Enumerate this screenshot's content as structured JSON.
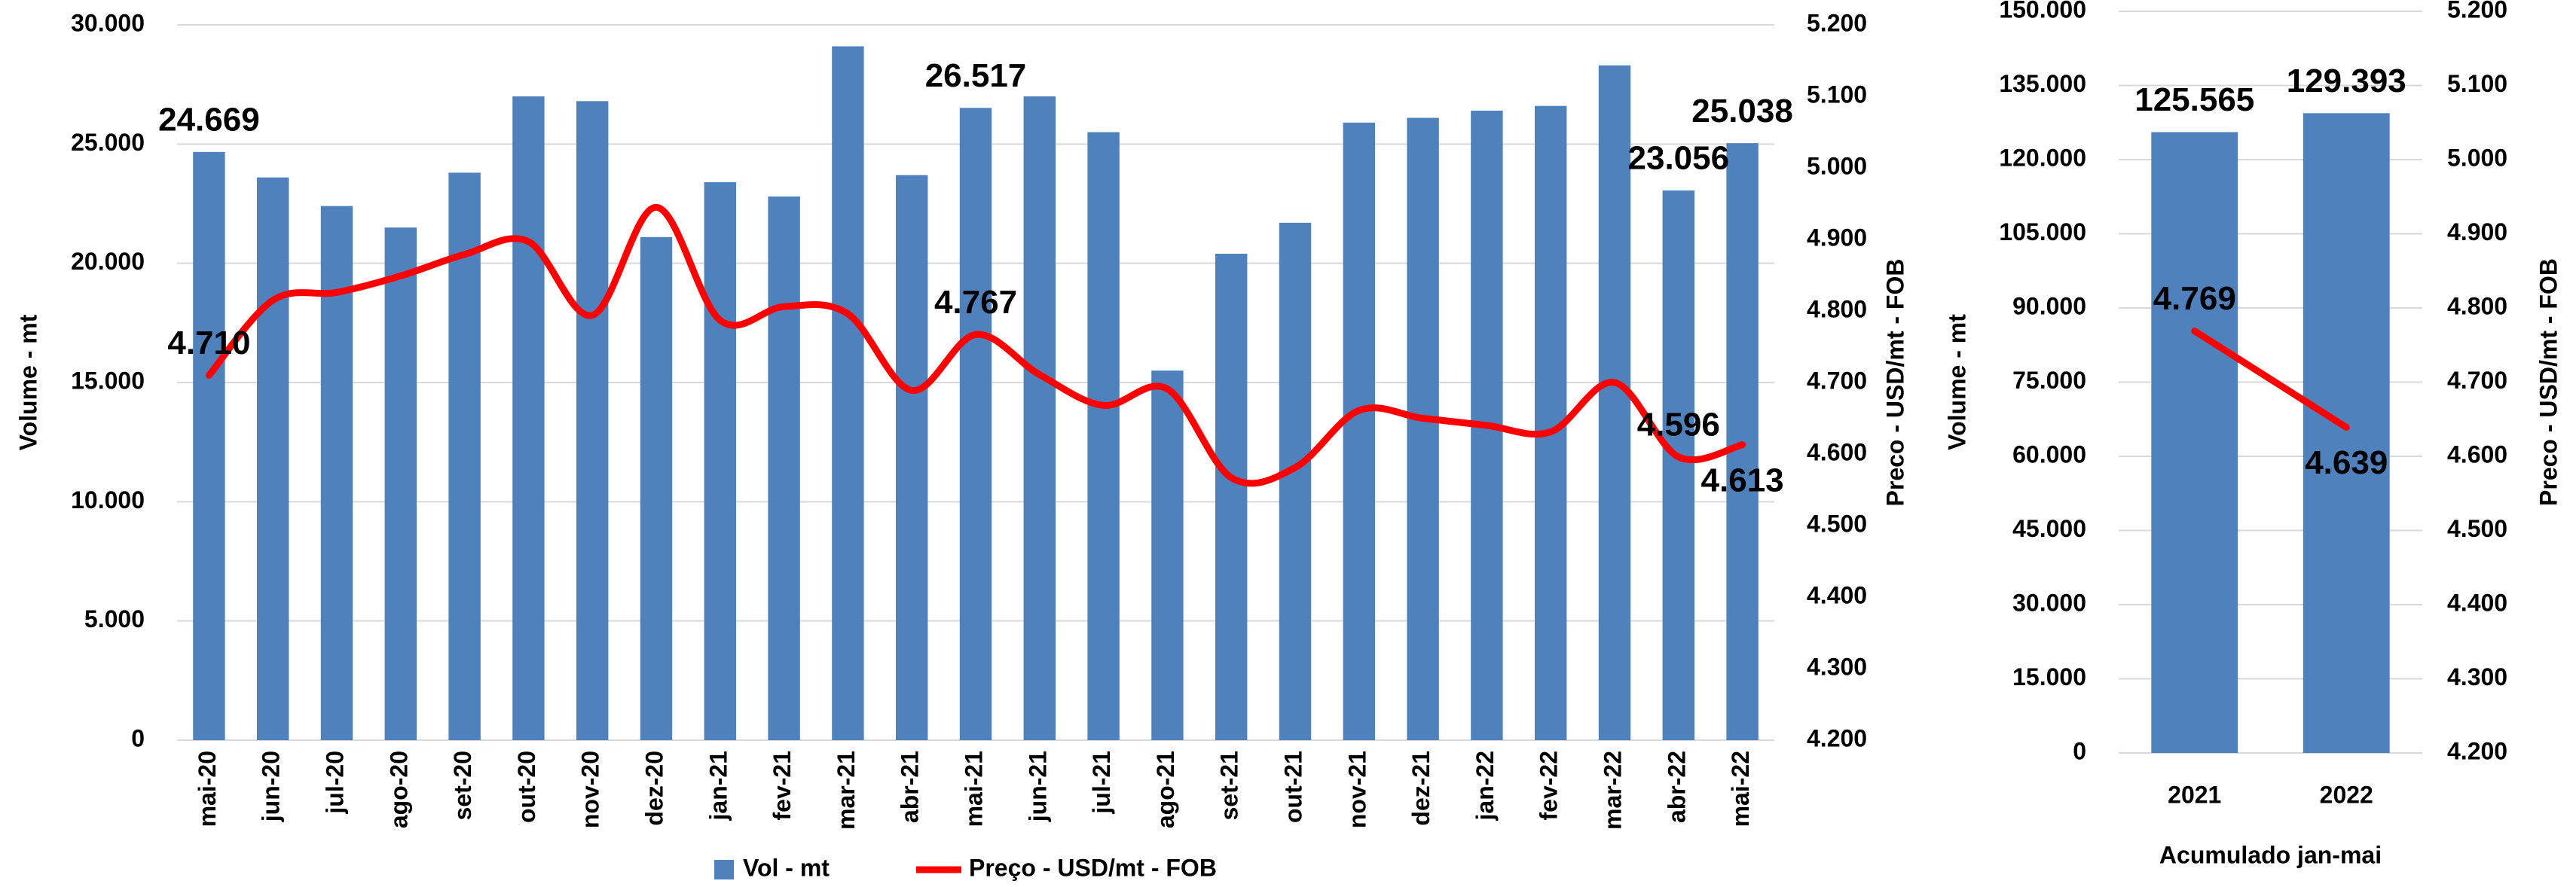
{
  "chart_data": [
    {
      "type": "bar_line",
      "y_label": "Volume - mt",
      "y2_label": "Preco - USD/mt - FOB",
      "categories": [
        "mai-20",
        "jun-20",
        "jul-20",
        "ago-20",
        "set-20",
        "out-20",
        "nov-20",
        "dez-20",
        "jan-21",
        "fev-21",
        "mar-21",
        "abr-21",
        "mai-21",
        "jun-21",
        "jul-21",
        "ago-21",
        "set-21",
        "out-21",
        "nov-21",
        "dez-21",
        "jan-22",
        "fev-22",
        "mar-22",
        "abr-22",
        "mai-22"
      ],
      "series": [
        {
          "name": "Vol - mt",
          "color": "#4f81bd",
          "kind": "bar",
          "values": [
            24669,
            23600,
            22400,
            21500,
            23800,
            27000,
            26800,
            21100,
            23400,
            22800,
            29100,
            23700,
            26517,
            27000,
            25500,
            15500,
            20400,
            21700,
            25900,
            26100,
            26400,
            26600,
            28300,
            23056,
            25038
          ],
          "value_labels": [
            "24.669",
            null,
            null,
            null,
            null,
            null,
            null,
            null,
            null,
            null,
            null,
            null,
            "26.517",
            null,
            null,
            null,
            null,
            null,
            null,
            null,
            null,
            null,
            null,
            "23.056",
            "25.038"
          ]
        },
        {
          "name": "Preço - USD/mt - FOB",
          "color": "#ff0000",
          "kind": "line",
          "axis": "y2",
          "values": [
            4710,
            4815,
            4826,
            4849,
            4879,
            4897,
            4794,
            4945,
            4787,
            4806,
            4796,
            4689,
            4767,
            4711,
            4668,
            4691,
            4567,
            4581,
            4661,
            4650,
            4640,
            4631,
            4700,
            4596,
            4613
          ],
          "value_labels": [
            "4.710",
            null,
            null,
            null,
            null,
            null,
            null,
            null,
            null,
            null,
            null,
            null,
            "4.767",
            null,
            null,
            null,
            null,
            null,
            null,
            null,
            null,
            null,
            null,
            "4.596",
            "4.613"
          ]
        }
      ],
      "ylim": [
        0,
        30000
      ],
      "yticks": [
        {
          "value": 0,
          "label": "0"
        },
        {
          "value": 5000,
          "label": "5.000"
        },
        {
          "value": 10000,
          "label": "10.000"
        },
        {
          "value": 15000,
          "label": "15.000"
        },
        {
          "value": 20000,
          "label": "20.000"
        },
        {
          "value": 25000,
          "label": "25.000"
        },
        {
          "value": 30000,
          "label": "30.000"
        }
      ],
      "y2lim": [
        4200,
        5200
      ],
      "y2ticks": [
        {
          "value": 4200,
          "label": "4.200"
        },
        {
          "value": 4300,
          "label": "4.300"
        },
        {
          "value": 4400,
          "label": "4.400"
        },
        {
          "value": 4500,
          "label": "4.500"
        },
        {
          "value": 4600,
          "label": "4.600"
        },
        {
          "value": 4700,
          "label": "4.700"
        },
        {
          "value": 4800,
          "label": "4.800"
        },
        {
          "value": 4900,
          "label": "4.900"
        },
        {
          "value": 5000,
          "label": "5.000"
        },
        {
          "value": 5100,
          "label": "5.100"
        },
        {
          "value": 5200,
          "label": "5.200"
        }
      ],
      "grid": true,
      "legend": "bottom"
    },
    {
      "type": "bar_line",
      "y_label": "Volume - mt",
      "y2_label": "Preco - USD/mt - FOB",
      "x_label": "Acumulado jan-mai",
      "categories": [
        "2021",
        "2022"
      ],
      "series": [
        {
          "name": "Vol - mt",
          "color": "#4f81bd",
          "kind": "bar",
          "values": [
            125565,
            129393
          ],
          "value_labels": [
            "125.565",
            "129.393"
          ]
        },
        {
          "name": "Preço - USD/mt - FOB",
          "color": "#ff0000",
          "kind": "line",
          "axis": "y2",
          "values": [
            4769,
            4639
          ],
          "value_labels": [
            "4.769",
            "4.639"
          ]
        }
      ],
      "ylim": [
        0,
        150000
      ],
      "yticks": [
        {
          "value": 0,
          "label": "0"
        },
        {
          "value": 15000,
          "label": "15.000"
        },
        {
          "value": 30000,
          "label": "30.000"
        },
        {
          "value": 45000,
          "label": "45.000"
        },
        {
          "value": 60000,
          "label": "60.000"
        },
        {
          "value": 75000,
          "label": "75.000"
        },
        {
          "value": 90000,
          "label": "90.000"
        },
        {
          "value": 105000,
          "label": "105.000"
        },
        {
          "value": 120000,
          "label": "120.000"
        },
        {
          "value": 135000,
          "label": "135.000"
        },
        {
          "value": 150000,
          "label": "150.000"
        }
      ],
      "y2lim": [
        4200,
        5200
      ],
      "y2ticks": [
        {
          "value": 4200,
          "label": "4.200"
        },
        {
          "value": 4300,
          "label": "4.300"
        },
        {
          "value": 4400,
          "label": "4.400"
        },
        {
          "value": 4500,
          "label": "4.500"
        },
        {
          "value": 4600,
          "label": "4.600"
        },
        {
          "value": 4700,
          "label": "4.700"
        },
        {
          "value": 4800,
          "label": "4.800"
        },
        {
          "value": 4900,
          "label": "4.900"
        },
        {
          "value": 5000,
          "label": "5.000"
        },
        {
          "value": 5100,
          "label": "5.100"
        },
        {
          "value": 5200,
          "label": "5.200"
        }
      ],
      "grid": true
    }
  ]
}
